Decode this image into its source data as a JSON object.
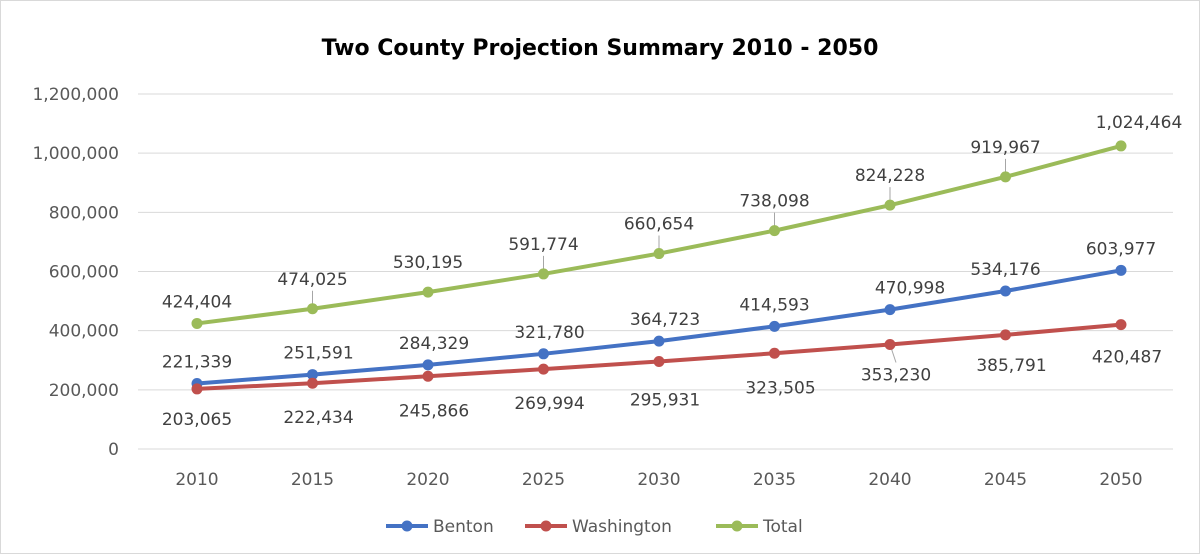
{
  "chart_data": {
    "type": "line",
    "title": "Two County Projection Summary 2010 - 2050",
    "xlabel": "",
    "ylabel": "",
    "categories": [
      "2010",
      "2015",
      "2020",
      "2025",
      "2030",
      "2035",
      "2040",
      "2045",
      "2050"
    ],
    "ylim": [
      0,
      1200000
    ],
    "yticks": [
      0,
      200000,
      400000,
      600000,
      800000,
      1000000,
      1200000
    ],
    "ytick_labels": [
      "0",
      "200,000",
      "400,000",
      "600,000",
      "800,000",
      "1,000,000",
      "1,200,000"
    ],
    "grid": true,
    "legend_position": "bottom",
    "series": [
      {
        "name": "Benton",
        "color": "#4472c4",
        "values": [
          221339,
          251591,
          284329,
          321780,
          364723,
          414593,
          470998,
          534176,
          603977
        ],
        "labels": [
          "221,339",
          "251,591",
          "284,329",
          "321,780",
          "364,723",
          "414,593",
          "470,998",
          "534,176",
          "603,977"
        ]
      },
      {
        "name": "Washington",
        "color": "#c0504d",
        "values": [
          203065,
          222434,
          245866,
          269994,
          295931,
          323505,
          353230,
          385791,
          420487
        ],
        "labels": [
          "203,065",
          "222,434",
          "245,866",
          "269,994",
          "295,931",
          "323,505",
          "353,230",
          "385,791",
          "420,487"
        ]
      },
      {
        "name": "Total",
        "color": "#9bbb59",
        "values": [
          424404,
          474025,
          530195,
          591774,
          660654,
          738098,
          824228,
          919967,
          1024464
        ],
        "labels": [
          "424,404",
          "474,025",
          "530,195",
          "591,774",
          "660,654",
          "738,098",
          "824,228",
          "919,967",
          "1,024,464"
        ]
      }
    ]
  }
}
